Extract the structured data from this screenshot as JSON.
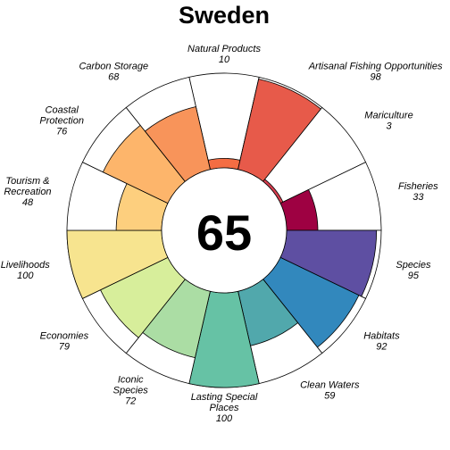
{
  "chart_data": {
    "type": "polar-bar",
    "title": "Sweden",
    "center_value": "65",
    "max_value": 100,
    "categories": [
      {
        "label": [
          "Natural Products"
        ],
        "value": 10,
        "value_text": "10",
        "color": "#f46d43"
      },
      {
        "label": [
          "Artisanal Fishing Opportunities"
        ],
        "value": 98,
        "value_text": "98",
        "color": "#e75a4a"
      },
      {
        "label": [
          "Mariculture"
        ],
        "value": 3,
        "value_text": "3",
        "color": "#d53e4f"
      },
      {
        "label": [
          "Fisheries"
        ],
        "value": 33,
        "value_text": "33",
        "color": "#9e0142"
      },
      {
        "label": [
          "Species"
        ],
        "value": 95,
        "value_text": "95",
        "color": "#5e4fa2"
      },
      {
        "label": [
          "Habitats"
        ],
        "value": 92,
        "value_text": "92",
        "color": "#3288bd"
      },
      {
        "label": [
          "Clean Waters"
        ],
        "value": 59,
        "value_text": "59",
        "color": "#51a8ac"
      },
      {
        "label": [
          "Lasting Special",
          "Places"
        ],
        "value": 100,
        "value_text": "100",
        "color": "#66c2a5"
      },
      {
        "label": [
          "Iconic",
          "Species"
        ],
        "value": 72,
        "value_text": "72",
        "color": "#abdda4"
      },
      {
        "label": [
          "Economies"
        ],
        "value": 79,
        "value_text": "79",
        "color": "#d7ee9b"
      },
      {
        "label": [
          "Livelihoods"
        ],
        "value": 100,
        "value_text": "100",
        "color": "#f7e48f"
      },
      {
        "label": [
          "Tourism &",
          "Recreation"
        ],
        "value": 48,
        "value_text": "48",
        "color": "#fdcf7e"
      },
      {
        "label": [
          "Coastal",
          "Protection"
        ],
        "value": 76,
        "value_text": "76",
        "color": "#fdb56b"
      },
      {
        "label": [
          "Carbon Storage"
        ],
        "value": 68,
        "value_text": "68",
        "color": "#f8945a"
      }
    ]
  }
}
